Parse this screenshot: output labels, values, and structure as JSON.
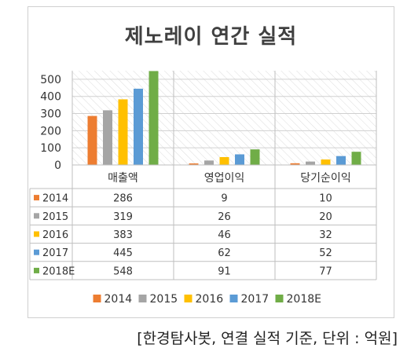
{
  "chart_data": {
    "type": "bar",
    "title": "제노레이 연간 실적",
    "categories": [
      "매출액",
      "영업이익",
      "당기순이익"
    ],
    "series": [
      {
        "name": "2014",
        "values": [
          286,
          9,
          10
        ],
        "color": "#ED7D31"
      },
      {
        "name": "2015",
        "values": [
          319,
          26,
          20
        ],
        "color": "#A5A5A5"
      },
      {
        "name": "2016",
        "values": [
          383,
          46,
          32
        ],
        "color": "#FFC000"
      },
      {
        "name": "2017",
        "values": [
          445,
          62,
          52
        ],
        "color": "#5B9BD5"
      },
      {
        "name": "2018E",
        "values": [
          548,
          91,
          77
        ],
        "color": "#70AD47"
      }
    ],
    "yticks": [
      "0",
      "100",
      "200",
      "300",
      "400",
      "500"
    ],
    "ylim": [
      0,
      550
    ],
    "grid": true,
    "legend_position": "bottom",
    "data_table": true
  },
  "source_note": "[한경탐사봇, 연결 실적 기준, 단위 : 억원]"
}
